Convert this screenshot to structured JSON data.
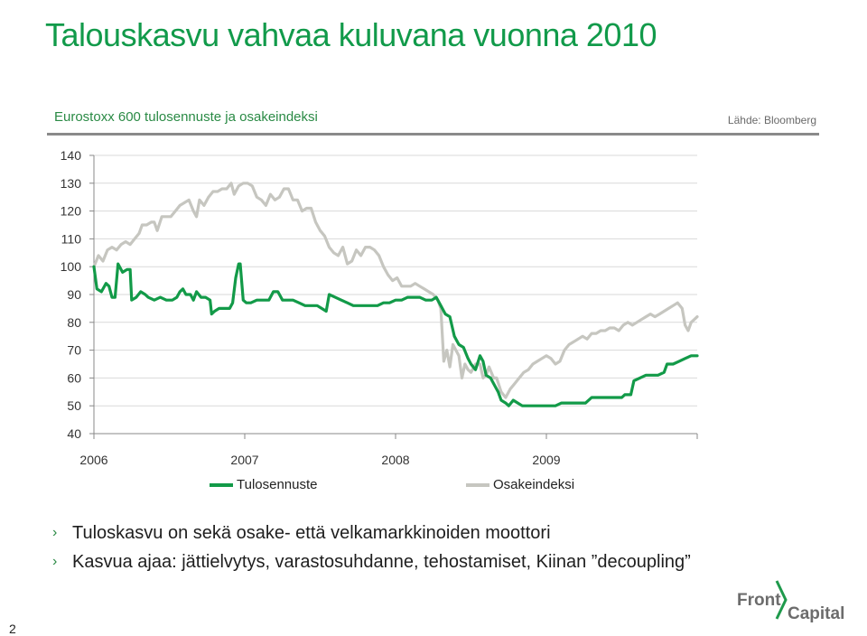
{
  "slide": {
    "title": "Talouskasvu vahvaa kuluvana vuonna 2010",
    "subtitle": "Eurostoxx 600 tulosennuste ja osakeindeksi",
    "source": "Lähde: Bloomberg",
    "page_number": "2",
    "bullets": [
      "Tuloskasvu on sekä osake- että velkamarkkinoiden moottori",
      "Kasvua ajaa: jättielvytys, varastosuhdanne, tehostamiset, Kiinan ”decoupling”"
    ],
    "bullet_icon": "chevron-right-icon",
    "logo": {
      "word1": "Front",
      "word2": "Capital",
      "icon": "bracket-icon"
    }
  },
  "chart_data": {
    "type": "line",
    "x_tick_labels": [
      "2006",
      "2007",
      "2008",
      "2009"
    ],
    "y_ticks": [
      40,
      50,
      60,
      70,
      80,
      90,
      100,
      110,
      120,
      130,
      140
    ],
    "ylim": [
      40,
      140
    ],
    "xlim": [
      2006.0,
      2010.0
    ],
    "grid": "horizontal",
    "legend_position": "bottom",
    "series": [
      {
        "name": "Tulosennuste",
        "color": "#129a48",
        "points": [
          [
            2006.0,
            100
          ],
          [
            2006.02,
            92
          ],
          [
            2006.05,
            91
          ],
          [
            2006.08,
            94
          ],
          [
            2006.1,
            93
          ],
          [
            2006.12,
            89
          ],
          [
            2006.14,
            89
          ],
          [
            2006.16,
            101
          ],
          [
            2006.19,
            98
          ],
          [
            2006.22,
            99
          ],
          [
            2006.24,
            99
          ],
          [
            2006.25,
            88
          ],
          [
            2006.28,
            89
          ],
          [
            2006.31,
            91
          ],
          [
            2006.34,
            90
          ],
          [
            2006.36,
            89
          ],
          [
            2006.4,
            88
          ],
          [
            2006.44,
            89
          ],
          [
            2006.48,
            88
          ],
          [
            2006.52,
            88
          ],
          [
            2006.55,
            89
          ],
          [
            2006.57,
            91
          ],
          [
            2006.59,
            92
          ],
          [
            2006.61,
            90
          ],
          [
            2006.64,
            90
          ],
          [
            2006.66,
            88
          ],
          [
            2006.68,
            91
          ],
          [
            2006.71,
            89
          ],
          [
            2006.74,
            89
          ],
          [
            2006.77,
            88
          ],
          [
            2006.78,
            83
          ],
          [
            2006.8,
            84
          ],
          [
            2006.83,
            85
          ],
          [
            2006.86,
            85
          ],
          [
            2006.9,
            85
          ],
          [
            2006.92,
            87
          ],
          [
            2006.94,
            96
          ],
          [
            2006.96,
            101
          ],
          [
            2006.97,
            101
          ],
          [
            2006.99,
            88
          ],
          [
            2007.01,
            87
          ],
          [
            2007.04,
            87
          ],
          [
            2007.08,
            88
          ],
          [
            2007.12,
            88
          ],
          [
            2007.16,
            88
          ],
          [
            2007.19,
            91
          ],
          [
            2007.22,
            91
          ],
          [
            2007.25,
            88
          ],
          [
            2007.28,
            88
          ],
          [
            2007.32,
            88
          ],
          [
            2007.36,
            87
          ],
          [
            2007.4,
            86
          ],
          [
            2007.44,
            86
          ],
          [
            2007.48,
            86
          ],
          [
            2007.51,
            85
          ],
          [
            2007.54,
            84
          ],
          [
            2007.56,
            90
          ],
          [
            2007.6,
            89
          ],
          [
            2007.64,
            88
          ],
          [
            2007.68,
            87
          ],
          [
            2007.72,
            86
          ],
          [
            2007.76,
            86
          ],
          [
            2007.8,
            86
          ],
          [
            2007.84,
            86
          ],
          [
            2007.88,
            86
          ],
          [
            2007.92,
            87
          ],
          [
            2007.96,
            87
          ],
          [
            2008.0,
            88
          ],
          [
            2008.04,
            88
          ],
          [
            2008.08,
            89
          ],
          [
            2008.12,
            89
          ],
          [
            2008.16,
            89
          ],
          [
            2008.2,
            88
          ],
          [
            2008.24,
            88
          ],
          [
            2008.27,
            89
          ],
          [
            2008.3,
            86
          ],
          [
            2008.33,
            83
          ],
          [
            2008.36,
            82
          ],
          [
            2008.39,
            75
          ],
          [
            2008.42,
            72
          ],
          [
            2008.45,
            71
          ],
          [
            2008.48,
            67
          ],
          [
            2008.5,
            65
          ],
          [
            2008.53,
            63
          ],
          [
            2008.56,
            68
          ],
          [
            2008.58,
            66
          ],
          [
            2008.6,
            61
          ],
          [
            2008.63,
            60
          ],
          [
            2008.66,
            57
          ],
          [
            2008.68,
            55
          ],
          [
            2008.7,
            52
          ],
          [
            2008.73,
            51
          ],
          [
            2008.75,
            50
          ],
          [
            2008.78,
            52
          ],
          [
            2008.81,
            51
          ],
          [
            2008.84,
            50
          ],
          [
            2008.88,
            50
          ],
          [
            2008.92,
            50
          ],
          [
            2008.96,
            50
          ],
          [
            2009.0,
            50
          ],
          [
            2009.03,
            50
          ],
          [
            2009.06,
            50
          ],
          [
            2009.1,
            51
          ],
          [
            2009.14,
            51
          ],
          [
            2009.18,
            51
          ],
          [
            2009.22,
            51
          ],
          [
            2009.26,
            51
          ],
          [
            2009.3,
            53
          ],
          [
            2009.34,
            53
          ],
          [
            2009.38,
            53
          ],
          [
            2009.42,
            53
          ],
          [
            2009.46,
            53
          ],
          [
            2009.5,
            53
          ],
          [
            2009.52,
            54
          ],
          [
            2009.56,
            54
          ],
          [
            2009.58,
            59
          ],
          [
            2009.62,
            60
          ],
          [
            2009.66,
            61
          ],
          [
            2009.7,
            61
          ],
          [
            2009.74,
            61
          ],
          [
            2009.78,
            62
          ],
          [
            2009.8,
            65
          ],
          [
            2009.84,
            65
          ],
          [
            2009.88,
            66
          ],
          [
            2009.92,
            67
          ],
          [
            2009.96,
            68
          ],
          [
            2010.0,
            68
          ]
        ]
      },
      {
        "name": "Osakeindeksi",
        "color": "#c6c6c0",
        "points": [
          [
            2006.0,
            100
          ],
          [
            2006.03,
            104
          ],
          [
            2006.06,
            102
          ],
          [
            2006.09,
            106
          ],
          [
            2006.12,
            107
          ],
          [
            2006.15,
            106
          ],
          [
            2006.18,
            108
          ],
          [
            2006.21,
            109
          ],
          [
            2006.24,
            108
          ],
          [
            2006.27,
            110
          ],
          [
            2006.3,
            112
          ],
          [
            2006.32,
            115
          ],
          [
            2006.35,
            115
          ],
          [
            2006.38,
            116
          ],
          [
            2006.4,
            116
          ],
          [
            2006.42,
            113
          ],
          [
            2006.45,
            118
          ],
          [
            2006.48,
            118
          ],
          [
            2006.51,
            118
          ],
          [
            2006.54,
            120
          ],
          [
            2006.57,
            122
          ],
          [
            2006.6,
            123
          ],
          [
            2006.63,
            124
          ],
          [
            2006.66,
            120
          ],
          [
            2006.68,
            118
          ],
          [
            2006.7,
            124
          ],
          [
            2006.73,
            122
          ],
          [
            2006.76,
            125
          ],
          [
            2006.79,
            127
          ],
          [
            2006.82,
            127
          ],
          [
            2006.85,
            128
          ],
          [
            2006.88,
            128
          ],
          [
            2006.91,
            130
          ],
          [
            2006.93,
            126
          ],
          [
            2006.96,
            129
          ],
          [
            2006.99,
            130
          ],
          [
            2007.02,
            130
          ],
          [
            2007.05,
            129
          ],
          [
            2007.08,
            125
          ],
          [
            2007.11,
            124
          ],
          [
            2007.14,
            122
          ],
          [
            2007.17,
            126
          ],
          [
            2007.2,
            124
          ],
          [
            2007.23,
            125
          ],
          [
            2007.26,
            128
          ],
          [
            2007.29,
            128
          ],
          [
            2007.32,
            124
          ],
          [
            2007.35,
            124
          ],
          [
            2007.38,
            120
          ],
          [
            2007.41,
            121
          ],
          [
            2007.44,
            121
          ],
          [
            2007.47,
            116
          ],
          [
            2007.5,
            113
          ],
          [
            2007.53,
            111
          ],
          [
            2007.56,
            107
          ],
          [
            2007.59,
            105
          ],
          [
            2007.62,
            104
          ],
          [
            2007.65,
            107
          ],
          [
            2007.68,
            101
          ],
          [
            2007.71,
            102
          ],
          [
            2007.74,
            106
          ],
          [
            2007.77,
            104
          ],
          [
            2007.8,
            107
          ],
          [
            2007.83,
            107
          ],
          [
            2007.86,
            106
          ],
          [
            2007.89,
            104
          ],
          [
            2007.92,
            100
          ],
          [
            2007.95,
            97
          ],
          [
            2007.98,
            95
          ],
          [
            2008.01,
            96
          ],
          [
            2008.04,
            93
          ],
          [
            2008.07,
            93
          ],
          [
            2008.1,
            93
          ],
          [
            2008.13,
            94
          ],
          [
            2008.16,
            93
          ],
          [
            2008.19,
            92
          ],
          [
            2008.22,
            91
          ],
          [
            2008.25,
            90
          ],
          [
            2008.28,
            88
          ],
          [
            2008.3,
            85
          ],
          [
            2008.32,
            66
          ],
          [
            2008.34,
            70
          ],
          [
            2008.36,
            64
          ],
          [
            2008.38,
            72
          ],
          [
            2008.4,
            70
          ],
          [
            2008.42,
            68
          ],
          [
            2008.44,
            60
          ],
          [
            2008.46,
            65
          ],
          [
            2008.48,
            63
          ],
          [
            2008.5,
            62
          ],
          [
            2008.53,
            65
          ],
          [
            2008.56,
            65
          ],
          [
            2008.58,
            60
          ],
          [
            2008.6,
            61
          ],
          [
            2008.62,
            64
          ],
          [
            2008.65,
            60
          ],
          [
            2008.67,
            60
          ],
          [
            2008.7,
            55
          ],
          [
            2008.73,
            53
          ],
          [
            2008.76,
            56
          ],
          [
            2008.79,
            58
          ],
          [
            2008.82,
            60
          ],
          [
            2008.85,
            62
          ],
          [
            2008.88,
            63
          ],
          [
            2008.91,
            65
          ],
          [
            2008.94,
            66
          ],
          [
            2008.97,
            67
          ],
          [
            2009.0,
            68
          ],
          [
            2009.03,
            67
          ],
          [
            2009.06,
            65
          ],
          [
            2009.09,
            66
          ],
          [
            2009.12,
            70
          ],
          [
            2009.15,
            72
          ],
          [
            2009.18,
            73
          ],
          [
            2009.21,
            74
          ],
          [
            2009.24,
            75
          ],
          [
            2009.27,
            74
          ],
          [
            2009.3,
            76
          ],
          [
            2009.33,
            76
          ],
          [
            2009.36,
            77
          ],
          [
            2009.39,
            77
          ],
          [
            2009.42,
            78
          ],
          [
            2009.45,
            78
          ],
          [
            2009.48,
            77
          ],
          [
            2009.51,
            79
          ],
          [
            2009.54,
            80
          ],
          [
            2009.57,
            79
          ],
          [
            2009.6,
            80
          ],
          [
            2009.63,
            81
          ],
          [
            2009.66,
            82
          ],
          [
            2009.69,
            83
          ],
          [
            2009.72,
            82
          ],
          [
            2009.75,
            83
          ],
          [
            2009.78,
            84
          ],
          [
            2009.81,
            85
          ],
          [
            2009.84,
            86
          ],
          [
            2009.87,
            87
          ],
          [
            2009.9,
            85
          ],
          [
            2009.92,
            79
          ],
          [
            2009.94,
            77
          ],
          [
            2009.96,
            80
          ],
          [
            2009.98,
            81
          ],
          [
            2010.0,
            82
          ]
        ]
      }
    ]
  }
}
